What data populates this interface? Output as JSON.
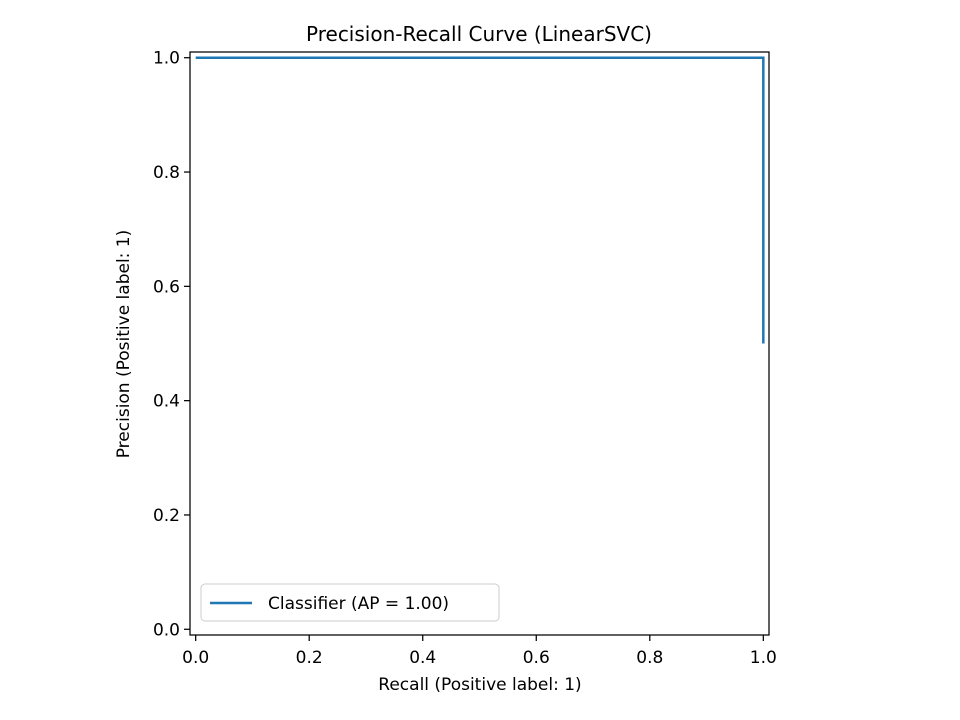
{
  "chart_data": {
    "type": "line",
    "title": "Precision-Recall Curve (LinearSVC)",
    "xlabel": "Recall (Positive label: 1)",
    "ylabel": "Precision (Positive label: 1)",
    "xlim": [
      -0.01,
      1.01
    ],
    "ylim": [
      -0.01,
      1.01
    ],
    "xticks": [
      "0.0",
      "0.2",
      "0.4",
      "0.6",
      "0.8",
      "1.0"
    ],
    "yticks": [
      "0.0",
      "0.2",
      "0.4",
      "0.6",
      "0.8",
      "1.0"
    ],
    "grid": false,
    "legend_position": "lower-left",
    "series": [
      {
        "name": "Classifier (AP = 1.00)",
        "color": "#1f77b4",
        "drawstyle": "steps-post",
        "points": [
          {
            "recall": 1.0,
            "precision": 0.5
          },
          {
            "recall": 1.0,
            "precision": 1.0
          },
          {
            "recall": 0.0,
            "precision": 1.0
          }
        ]
      }
    ]
  }
}
